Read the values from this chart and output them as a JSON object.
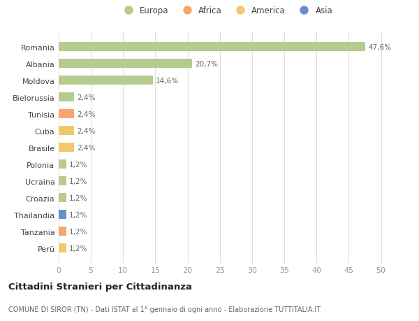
{
  "categories": [
    "Romania",
    "Albania",
    "Moldova",
    "Bielorussia",
    "Tunisia",
    "Cuba",
    "Brasile",
    "Polonia",
    "Ucraina",
    "Croazia",
    "Thailandia",
    "Tanzania",
    "Perü"
  ],
  "values": [
    47.6,
    20.7,
    14.6,
    2.4,
    2.4,
    2.4,
    2.4,
    1.2,
    1.2,
    1.2,
    1.2,
    1.2,
    1.2
  ],
  "labels": [
    "47,6%",
    "20,7%",
    "14,6%",
    "2,4%",
    "2,4%",
    "2,4%",
    "2,4%",
    "1,2%",
    "1,2%",
    "1,2%",
    "1,2%",
    "1,2%",
    "1,2%"
  ],
  "continents": [
    "Europa",
    "Europa",
    "Europa",
    "Europa",
    "Africa",
    "America",
    "America",
    "Europa",
    "Europa",
    "Europa",
    "Asia",
    "Africa",
    "America"
  ],
  "continent_colors": {
    "Europa": "#b5cc8e",
    "Africa": "#f4a870",
    "America": "#f2c96a",
    "Asia": "#6b8ccc"
  },
  "legend_entries": [
    "Europa",
    "Africa",
    "America",
    "Asia"
  ],
  "legend_colors": [
    "#b5cc8e",
    "#f4a870",
    "#f2c96a",
    "#6b8ccc"
  ],
  "xlim": [
    0,
    52
  ],
  "xticks": [
    0,
    5,
    10,
    15,
    20,
    25,
    30,
    35,
    40,
    45,
    50
  ],
  "title": "Cittadini Stranieri per Cittadinanza",
  "subtitle": "COMUNE DI SIROR (TN) - Dati ISTAT al 1° gennaio di ogni anno - Elaborazione TUTTITALIA.IT",
  "background_color": "#ffffff",
  "bar_height": 0.55
}
